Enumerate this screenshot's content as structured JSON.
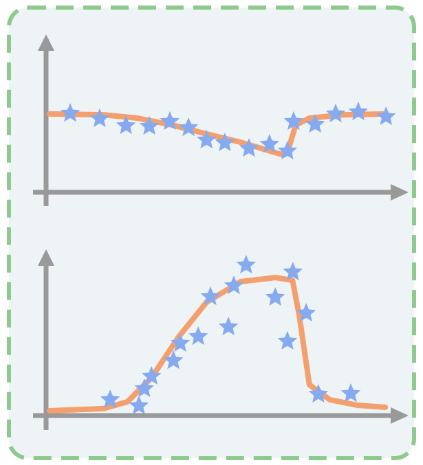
{
  "chart_data": [
    {
      "type": "scatter",
      "xlim": [
        0,
        100
      ],
      "ylim": [
        0,
        100
      ],
      "series": [
        {
          "type": "line",
          "color": "#f4a06e",
          "x": [
            1,
            15.9,
            25.4,
            35,
            44.6,
            54.1,
            65.6,
            67.5,
            69.4,
            73.2,
            82.8,
            94.3
          ],
          "values": [
            50.7,
            50.2,
            48,
            43.6,
            37.8,
            32.4,
            24.4,
            28.9,
            43.6,
            48,
            50.2,
            50.7
          ]
        },
        {
          "type": "scatter",
          "color": "#86aaf0",
          "x": [
            6.7,
            14.9,
            22.2,
            28.7,
            34.4,
            39.6,
            44.6,
            49.7,
            56.4,
            62.1,
            67.1,
            68.8,
            74.8,
            80.5,
            86.8,
            94.5
          ],
          "values": [
            51.1,
            47.6,
            43.1,
            42.7,
            45.8,
            41.8,
            33.8,
            32,
            28.4,
            31.1,
            26.7,
            45.8,
            44,
            50.7,
            52,
            48.9
          ]
        }
      ]
    },
    {
      "type": "scatter",
      "xlim": [
        0,
        100
      ],
      "ylim": [
        0,
        100
      ],
      "series": [
        {
          "type": "line",
          "color": "#f4a06e",
          "x": [
            1,
            15.9,
            22.6,
            29.3,
            36.9,
            44.6,
            54.1,
            63.7,
            68.5,
            70.4,
            73.2,
            78.9,
            86.6,
            94.3
          ],
          "values": [
            3,
            4.3,
            8.5,
            23.4,
            48.9,
            70.2,
            83,
            85.5,
            83.8,
            61.7,
            19.1,
            9.8,
            6.4,
            5.1
          ]
        },
        {
          "type": "scatter",
          "color": "#86aaf0",
          "x": [
            17.8,
            25.8,
            27.3,
            29.3,
            35.4,
            37.3,
            42.3,
            45.7,
            50.7,
            52.2,
            55.6,
            63.7,
            67.1,
            68.6,
            72.3,
            75.7,
            84.7
          ],
          "values": [
            9.8,
            6,
            16.6,
            24.3,
            34,
            44.7,
            48.9,
            73.6,
            54.9,
            80.4,
            93.2,
            73.2,
            46,
            88.9,
            63.4,
            13.2,
            13.6
          ]
        }
      ]
    }
  ]
}
